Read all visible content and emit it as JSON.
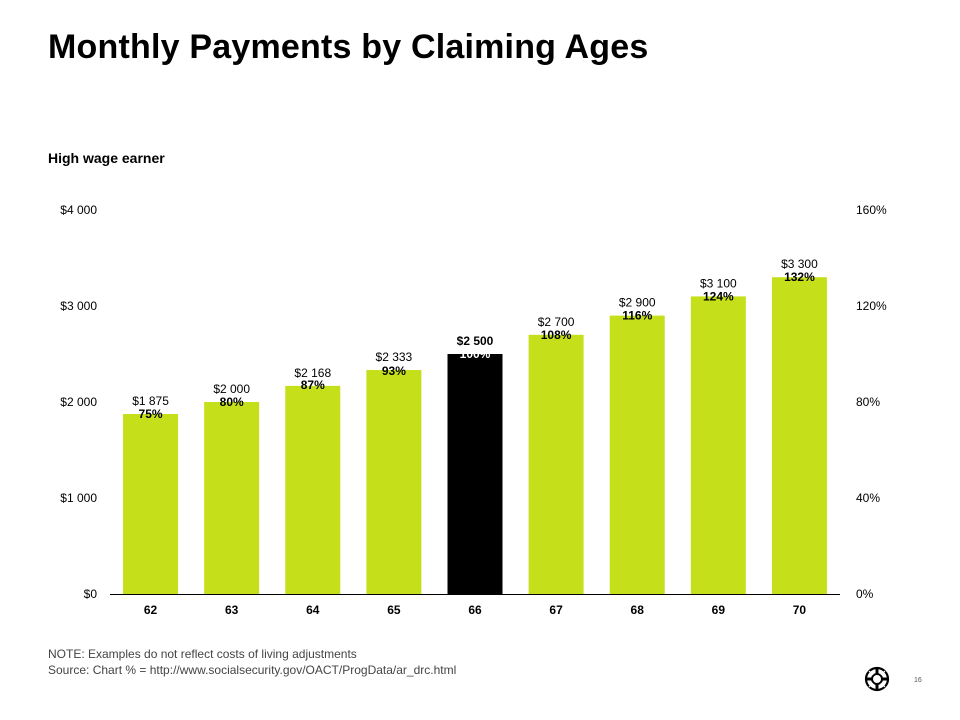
{
  "slide": {
    "title": "Monthly Payments by Claiming Ages",
    "subtitle": "High wage earner",
    "note_line1": "NOTE: Examples do not reflect costs of living adjustments",
    "note_line2": "Source: Chart % = http://www.socialsecurity.gov/OACT/ProgData/ar_drc.html",
    "page_number": "16",
    "logo_icon": "lifebuoy-logo-icon"
  },
  "colors": {
    "bar": "#c5e01a",
    "highlight_bar": "#000000",
    "axis": "#000000",
    "text": "#000000"
  },
  "chart_data": {
    "type": "bar",
    "categories": [
      "62",
      "63",
      "64",
      "65",
      "66",
      "67",
      "68",
      "69",
      "70"
    ],
    "values": [
      1875,
      2000,
      2168,
      2333,
      2500,
      2700,
      2900,
      3100,
      3300
    ],
    "value_labels": [
      "$1 875",
      "$2 000",
      "$2 168",
      "$2 333",
      "$2 500",
      "$2 700",
      "$2 900",
      "$3 100",
      "$3 300"
    ],
    "percent_labels": [
      "75%",
      "80%",
      "87%",
      "93%",
      "100%",
      "108%",
      "116%",
      "124%",
      "132%"
    ],
    "highlight_category": "66",
    "ylim": [
      0,
      4000
    ],
    "y_ticks": [
      0,
      1000,
      2000,
      3000,
      4000
    ],
    "y_tick_labels": [
      "$0",
      "$1 000",
      "$2 000",
      "$3 000",
      "$4 000"
    ],
    "y2lim": [
      0,
      160
    ],
    "y2_ticks": [
      0,
      40,
      80,
      120,
      160
    ],
    "y2_tick_labels": [
      "0%",
      "40%",
      "80%",
      "120%",
      "160%"
    ],
    "grid": false,
    "legend": "none",
    "title": "",
    "xlabel": "",
    "ylabel": ""
  }
}
